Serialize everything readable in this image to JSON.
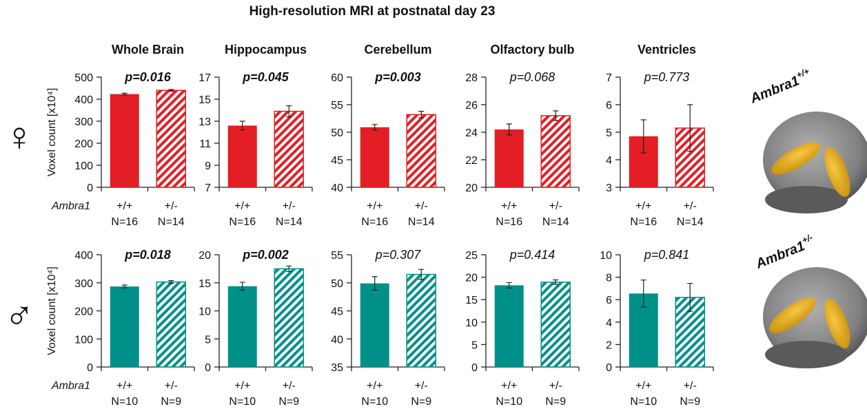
{
  "figure": {
    "title": "High-resolution MRI at postnatal day 23",
    "sex_symbols": [
      "♀",
      "♂"
    ],
    "brain_labels": [
      {
        "gene": "Ambra1",
        "genotype": "+/+"
      },
      {
        "gene": "Ambra1",
        "genotype": "+/-"
      }
    ],
    "bar_styles": [
      "solid",
      "hatched"
    ]
  },
  "chart_data": [
    {
      "type": "bar",
      "title": "Whole Brain",
      "annotation": "p=0.016",
      "annotation_bold": true,
      "y_label": "Voxel count [x10⁴]",
      "x_label": "Ambra1",
      "categories": [
        "+/+",
        "+/-"
      ],
      "n_labels": [
        "N=16",
        "N=14"
      ],
      "values": [
        423,
        440
      ],
      "errors": [
        4,
        4
      ],
      "color": "#e31e24",
      "ylim": [
        0,
        500
      ],
      "yticks": [
        0,
        100,
        200,
        300,
        400,
        500
      ]
    },
    {
      "type": "bar",
      "title": "Hippocampus",
      "annotation": "p=0.045",
      "annotation_bold": true,
      "categories": [
        "+/+",
        "+/-"
      ],
      "n_labels": [
        "N=16",
        "N=14"
      ],
      "values": [
        12.6,
        13.9
      ],
      "errors": [
        0.4,
        0.5
      ],
      "color": "#e31e24",
      "ylim": [
        7,
        17
      ],
      "yticks": [
        7,
        9,
        11,
        13,
        15,
        17
      ]
    },
    {
      "type": "bar",
      "title": "Cerebellum",
      "annotation": "p=0.003",
      "annotation_bold": true,
      "categories": [
        "+/+",
        "+/-"
      ],
      "n_labels": [
        "N=16",
        "N=14"
      ],
      "values": [
        50.9,
        53.2
      ],
      "errors": [
        0.5,
        0.6
      ],
      "color": "#e31e24",
      "ylim": [
        40,
        60
      ],
      "yticks": [
        40,
        45,
        50,
        55,
        60
      ]
    },
    {
      "type": "bar",
      "title": "Olfactory bulb",
      "annotation": "p=0.068",
      "annotation_bold": false,
      "categories": [
        "+/+",
        "+/-"
      ],
      "n_labels": [
        "N=16",
        "N=14"
      ],
      "values": [
        24.2,
        25.2
      ],
      "errors": [
        0.4,
        0.35
      ],
      "color": "#e31e24",
      "ylim": [
        20,
        28
      ],
      "yticks": [
        20,
        22,
        24,
        26,
        28
      ]
    },
    {
      "type": "bar",
      "title": "Ventricles",
      "annotation": "p=0.773",
      "annotation_bold": false,
      "categories": [
        "+/+",
        "+/-"
      ],
      "n_labels": [
        "N=16",
        "N=14"
      ],
      "values": [
        4.85,
        5.15
      ],
      "errors": [
        0.6,
        0.85
      ],
      "color": "#e31e24",
      "ylim": [
        3,
        7
      ],
      "yticks": [
        3,
        4,
        5,
        6,
        7
      ]
    },
    {
      "type": "bar",
      "annotation": "p=0.018",
      "annotation_bold": true,
      "y_label": "Voxel count [x10⁴]",
      "x_label": "Ambra1",
      "categories": [
        "+/+",
        "+/-"
      ],
      "n_labels": [
        "N=10",
        "N=9"
      ],
      "values": [
        287,
        303
      ],
      "errors": [
        5,
        5
      ],
      "color": "#00908a",
      "ylim": [
        0,
        400
      ],
      "yticks": [
        0,
        100,
        200,
        300,
        400
      ]
    },
    {
      "type": "bar",
      "annotation": "p=0.002",
      "annotation_bold": true,
      "categories": [
        "+/+",
        "+/-"
      ],
      "n_labels": [
        "N=10",
        "N=9"
      ],
      "values": [
        14.4,
        17.5
      ],
      "errors": [
        0.7,
        0.5
      ],
      "color": "#00908a",
      "ylim": [
        0,
        20
      ],
      "yticks": [
        0,
        5,
        10,
        15,
        20
      ]
    },
    {
      "type": "bar",
      "annotation": "p=0.307",
      "annotation_bold": false,
      "categories": [
        "+/+",
        "+/-"
      ],
      "n_labels": [
        "N=10",
        "N=9"
      ],
      "values": [
        49.9,
        51.5
      ],
      "errors": [
        1.2,
        0.9
      ],
      "color": "#00908a",
      "ylim": [
        35,
        55
      ],
      "yticks": [
        35,
        40,
        45,
        50,
        55
      ]
    },
    {
      "type": "bar",
      "annotation": "p=0.414",
      "annotation_bold": false,
      "categories": [
        "+/+",
        "+/-"
      ],
      "n_labels": [
        "N=10",
        "N=9"
      ],
      "values": [
        18.2,
        18.9
      ],
      "errors": [
        0.6,
        0.5
      ],
      "color": "#00908a",
      "ylim": [
        0,
        25
      ],
      "yticks": [
        0,
        5,
        10,
        15,
        20,
        25
      ]
    },
    {
      "type": "bar",
      "annotation": "p=0.841",
      "annotation_bold": false,
      "categories": [
        "+/+",
        "+/-"
      ],
      "n_labels": [
        "N=10",
        "N=9"
      ],
      "values": [
        6.55,
        6.2
      ],
      "errors": [
        1.2,
        1.25
      ],
      "color": "#00908a",
      "ylim": [
        0,
        10
      ],
      "yticks": [
        0,
        2,
        4,
        6,
        8,
        10
      ]
    }
  ]
}
